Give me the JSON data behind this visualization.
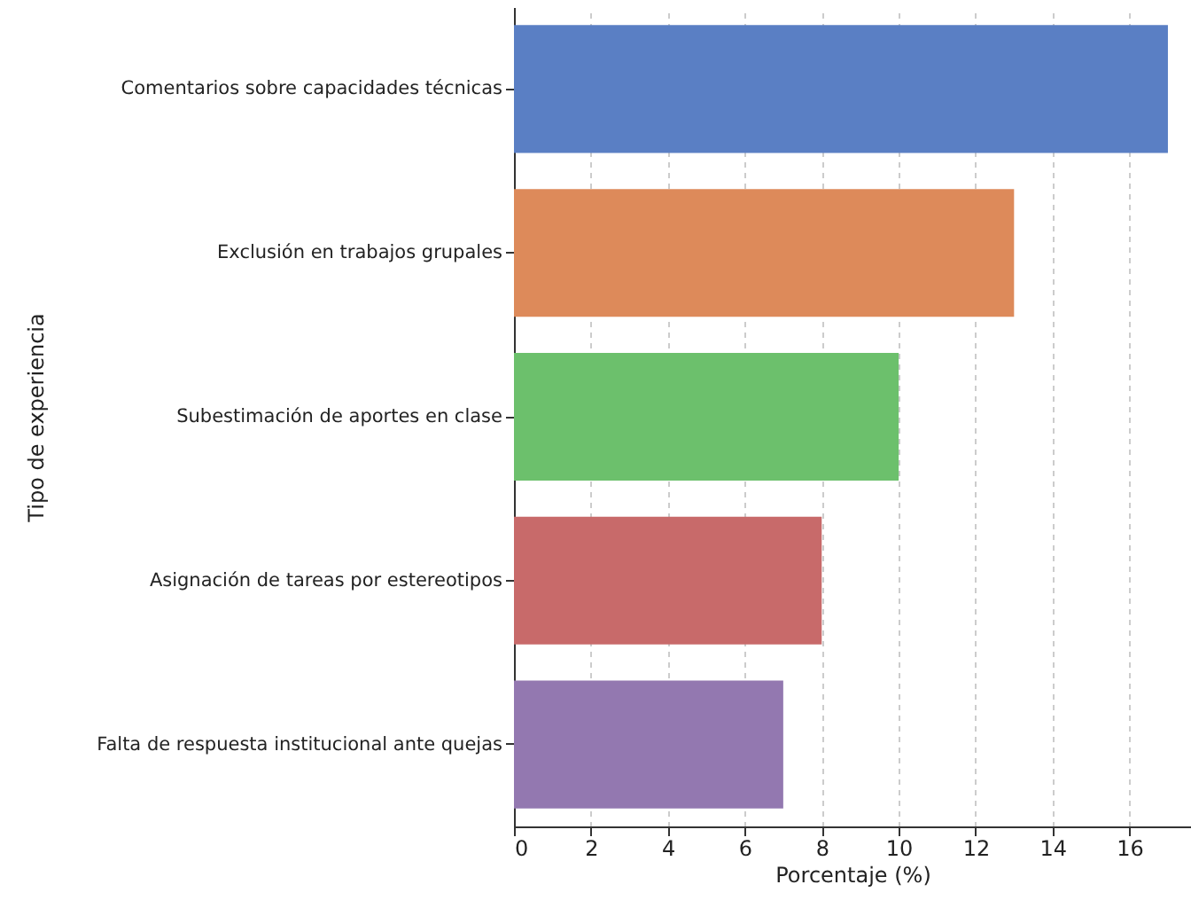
{
  "chart_data": {
    "type": "bar",
    "orientation": "horizontal",
    "xlabel": "Porcentaje (%)",
    "ylabel": "Tipo de experiencia",
    "categories": [
      "Comentarios sobre capacidades técnicas",
      "Exclusión en trabajos grupales",
      "Subestimación de aportes en clase",
      "Asignación de tareas por estereotipos",
      "Falta de respuesta institucional ante quejas"
    ],
    "values": [
      17,
      13,
      10,
      8,
      7
    ],
    "colors": [
      "#5a7fc4",
      "#dd8a5a",
      "#6cc06c",
      "#c86a6a",
      "#9378b0"
    ],
    "xlim": [
      0,
      17.6
    ],
    "xticks": [
      0,
      2,
      4,
      6,
      8,
      10,
      12,
      14,
      16
    ],
    "grid": "x"
  }
}
